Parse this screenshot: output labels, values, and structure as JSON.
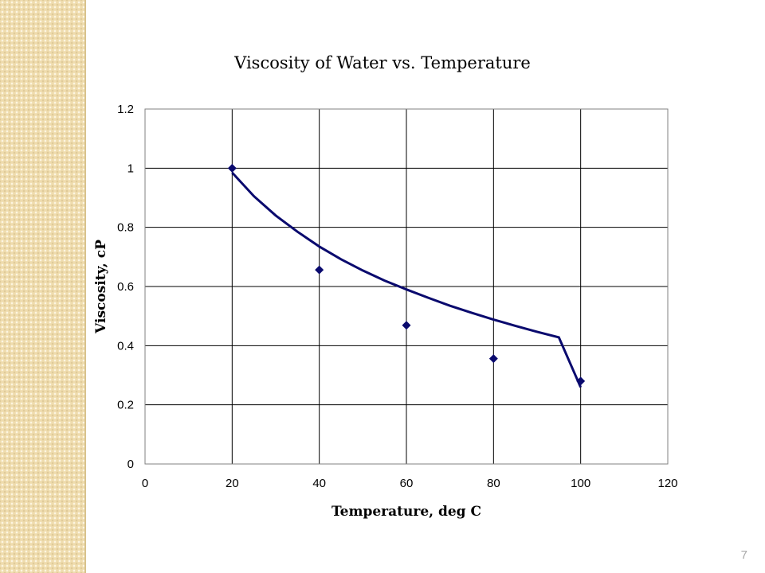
{
  "slide": {
    "page_number": "7"
  },
  "chart_data": {
    "type": "scatter",
    "title": "Viscosity of Water vs. Temperature",
    "xlabel": "Temperature, deg C",
    "ylabel": "Viscosity, cP",
    "xlim": [
      0,
      120
    ],
    "ylim": [
      0,
      1.2
    ],
    "x_ticks": [
      "0",
      "20",
      "40",
      "60",
      "80",
      "100",
      "120"
    ],
    "y_ticks": [
      "0",
      "0.2",
      "0.4",
      "0.6",
      "0.8",
      "1",
      "1.2"
    ],
    "grid": true,
    "legend": "none",
    "series": [
      {
        "kind": "points",
        "marker": "diamond",
        "color": "#0a0a6e",
        "x": [
          20,
          40,
          60,
          80,
          100
        ],
        "y": [
          1.0,
          0.656,
          0.469,
          0.356,
          0.28
        ]
      },
      {
        "kind": "trendline",
        "color": "#0a0a6e",
        "x": [
          20,
          25,
          30,
          35,
          40,
          45,
          50,
          55,
          60,
          65,
          70,
          75,
          80,
          85,
          90,
          95,
          100
        ],
        "y": [
          0.985,
          0.905,
          0.84,
          0.785,
          0.735,
          0.692,
          0.654,
          0.62,
          0.59,
          0.562,
          0.535,
          0.511,
          0.488,
          0.467,
          0.447,
          0.428,
          0.259
        ]
      }
    ]
  }
}
